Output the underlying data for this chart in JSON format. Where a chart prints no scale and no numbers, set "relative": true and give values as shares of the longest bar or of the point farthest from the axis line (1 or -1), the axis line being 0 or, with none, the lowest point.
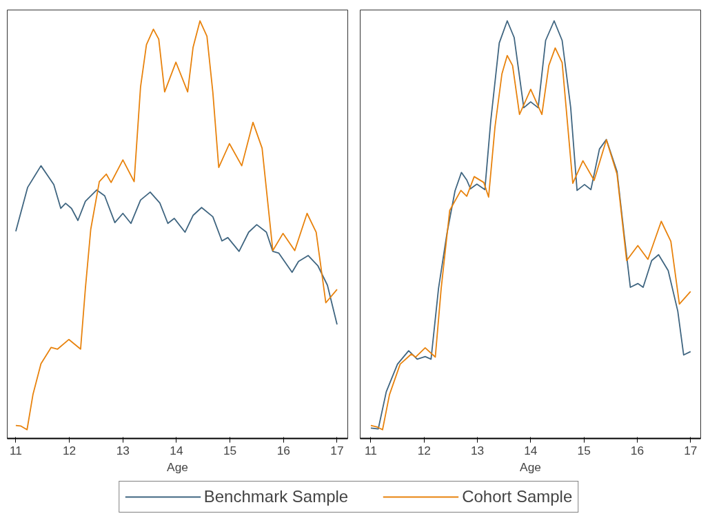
{
  "chart_data": [
    {
      "type": "line",
      "relative": true,
      "xlabel": "Age",
      "xlim": [
        10.84,
        17.2
      ],
      "xticks": [
        11,
        12,
        13,
        14,
        15,
        16,
        17
      ],
      "tick_labels": "x",
      "grid": false,
      "legend": "bottom",
      "marker": "none",
      "line_style": "solid",
      "series": [
        {
          "name": "Benchmark Sample",
          "color": "#3f6580",
          "x": [
            11.0,
            11.22,
            11.47,
            11.71,
            11.84,
            11.93,
            12.04,
            12.16,
            12.3,
            12.51,
            12.66,
            12.85,
            13.0,
            13.15,
            13.33,
            13.51,
            13.69,
            13.84,
            13.96,
            14.16,
            14.31,
            14.47,
            14.68,
            14.85,
            14.96,
            15.17,
            15.35,
            15.5,
            15.68,
            15.8,
            15.91,
            16.16,
            16.28,
            16.46,
            16.64,
            16.82,
            17.0
          ],
          "values": [
            0.496,
            0.601,
            0.653,
            0.608,
            0.551,
            0.563,
            0.551,
            0.522,
            0.568,
            0.595,
            0.581,
            0.517,
            0.539,
            0.515,
            0.571,
            0.59,
            0.564,
            0.515,
            0.527,
            0.494,
            0.534,
            0.553,
            0.531,
            0.473,
            0.481,
            0.448,
            0.494,
            0.512,
            0.494,
            0.448,
            0.444,
            0.398,
            0.424,
            0.438,
            0.414,
            0.367,
            0.273
          ]
        },
        {
          "name": "Cohort Sample",
          "color": "#e8820c",
          "x": [
            11.0,
            11.09,
            11.21,
            11.32,
            11.47,
            11.66,
            11.78,
            11.99,
            12.21,
            12.3,
            12.4,
            12.56,
            12.69,
            12.78,
            13.0,
            13.21,
            13.33,
            13.44,
            13.57,
            13.67,
            13.78,
            13.99,
            14.21,
            14.31,
            14.44,
            14.57,
            14.68,
            14.79,
            14.99,
            15.22,
            15.43,
            15.6,
            15.8,
            15.99,
            16.21,
            16.44,
            16.61,
            16.79,
            17.0
          ],
          "values": [
            0.031,
            0.03,
            0.021,
            0.105,
            0.179,
            0.218,
            0.214,
            0.237,
            0.214,
            0.36,
            0.501,
            0.615,
            0.633,
            0.613,
            0.667,
            0.615,
            0.842,
            0.943,
            0.98,
            0.956,
            0.83,
            0.901,
            0.83,
            0.936,
            1.0,
            0.963,
            0.829,
            0.649,
            0.706,
            0.653,
            0.757,
            0.695,
            0.45,
            0.491,
            0.45,
            0.539,
            0.494,
            0.325,
            0.357
          ]
        }
      ]
    },
    {
      "type": "line",
      "relative": true,
      "xlabel": "Age",
      "xlim": [
        10.8,
        17.19
      ],
      "xticks": [
        11,
        12,
        13,
        14,
        15,
        16,
        17
      ],
      "tick_labels": "x",
      "grid": false,
      "marker": "none",
      "line_style": "solid",
      "series": [
        {
          "color": "#3f6580",
          "x": [
            11.0,
            11.14,
            11.29,
            11.5,
            11.71,
            11.87,
            12.02,
            12.13,
            12.27,
            12.43,
            12.58,
            12.7,
            12.8,
            12.87,
            12.99,
            13.14,
            13.25,
            13.41,
            13.56,
            13.69,
            13.87,
            14.0,
            14.14,
            14.28,
            14.44,
            14.59,
            14.75,
            14.87,
            15.01,
            15.13,
            15.29,
            15.42,
            15.62,
            15.75,
            15.87,
            16.01,
            16.11,
            16.27,
            16.4,
            16.58,
            16.76,
            16.87,
            17.0
          ],
          "values": [
            0.025,
            0.023,
            0.112,
            0.178,
            0.21,
            0.19,
            0.196,
            0.19,
            0.359,
            0.492,
            0.593,
            0.637,
            0.619,
            0.598,
            0.609,
            0.596,
            0.76,
            0.947,
            1.0,
            0.96,
            0.792,
            0.806,
            0.792,
            0.953,
            1.0,
            0.953,
            0.793,
            0.594,
            0.608,
            0.596,
            0.693,
            0.716,
            0.639,
            0.492,
            0.362,
            0.371,
            0.362,
            0.426,
            0.44,
            0.402,
            0.305,
            0.2,
            0.208
          ]
        },
        {
          "color": "#e8820c",
          "x": [
            11.0,
            11.11,
            11.22,
            11.35,
            11.55,
            11.76,
            11.84,
            12.02,
            12.21,
            12.32,
            12.48,
            12.69,
            12.8,
            12.94,
            13.12,
            13.21,
            13.33,
            13.46,
            13.56,
            13.66,
            13.79,
            14.0,
            14.21,
            14.34,
            14.46,
            14.59,
            14.79,
            14.98,
            15.19,
            15.42,
            15.62,
            15.8,
            16.01,
            16.2,
            16.45,
            16.63,
            16.79,
            17.0
          ],
          "values": [
            0.031,
            0.028,
            0.021,
            0.105,
            0.178,
            0.202,
            0.195,
            0.217,
            0.195,
            0.359,
            0.546,
            0.594,
            0.58,
            0.627,
            0.613,
            0.578,
            0.746,
            0.873,
            0.917,
            0.893,
            0.776,
            0.836,
            0.776,
            0.893,
            0.935,
            0.9,
            0.611,
            0.665,
            0.618,
            0.715,
            0.633,
            0.426,
            0.462,
            0.429,
            0.52,
            0.472,
            0.322,
            0.352
          ]
        }
      ]
    }
  ]
}
